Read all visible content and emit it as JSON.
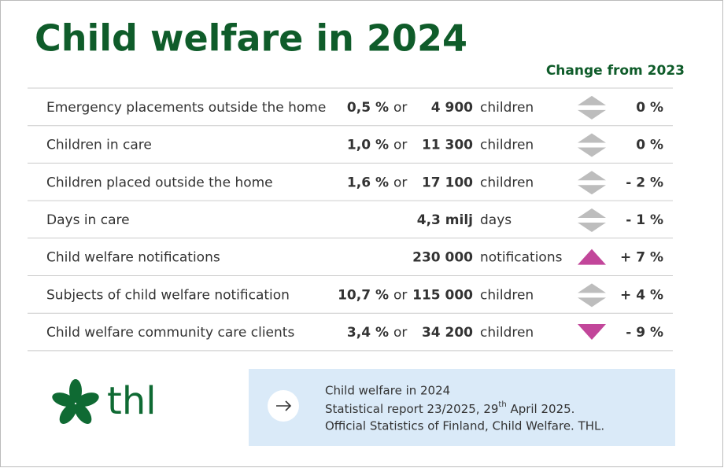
{
  "header": {
    "title": "Child welfare in 2024",
    "change_heading": "Change from 2023"
  },
  "table": {
    "rows": [
      {
        "label": "Emergency placements outside the home",
        "share": "0,5 %",
        "or": "or",
        "count": "4 900",
        "unit": "children",
        "trend": "neutral",
        "change": "0 %"
      },
      {
        "label": "Children in care",
        "share": "1,0 %",
        "or": "or",
        "count": "11 300",
        "unit": "children",
        "trend": "neutral",
        "change": "0 %"
      },
      {
        "label": "Children placed outside the home",
        "share": "1,6 %",
        "or": "or",
        "count": "17 100",
        "unit": "children",
        "trend": "neutral",
        "change": "- 2 %"
      },
      {
        "label": "Days in care",
        "count": "4,3 milj",
        "unit": "days",
        "trend": "neutral",
        "change": "- 1 %"
      },
      {
        "label": "Child welfare notifications",
        "count": "230 000",
        "unit": "notifications",
        "trend": "up",
        "change": "+ 7 %"
      },
      {
        "label": "Subjects of child welfare notification",
        "share": "10,7 %",
        "or": "or",
        "count": "115 000",
        "unit": "children",
        "trend": "neutral",
        "change": "+ 4 %"
      },
      {
        "label": "Child welfare community care clients",
        "share": "3,4 %",
        "or": "or",
        "count": "34 200",
        "unit": "children",
        "trend": "down",
        "change": "- 9 %"
      }
    ]
  },
  "footer": {
    "logo": "thl",
    "source": {
      "line1": "Child welfare in 2024",
      "line2_a": "Statistical report 23/2025, 29",
      "line2_sup": "th",
      "line2_b": " April 2025.",
      "line3": "Official Statistics of Finland, Child Welfare. THL."
    }
  }
}
